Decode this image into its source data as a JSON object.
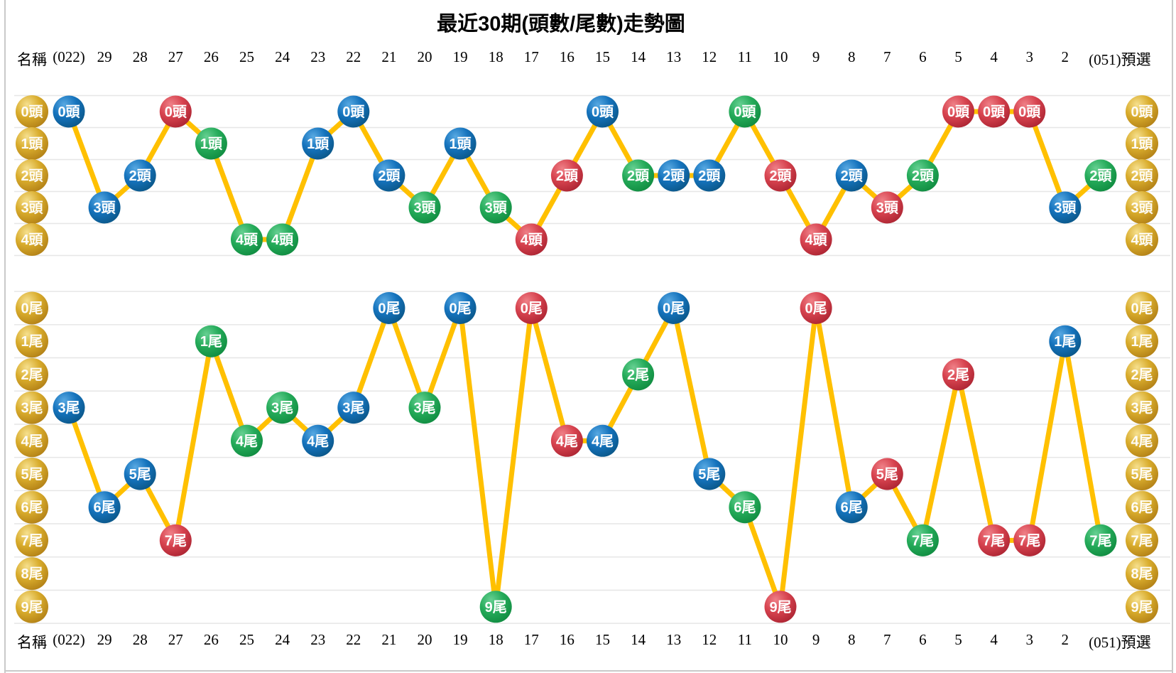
{
  "title": "最近30期(頭數/尾數)走勢圖",
  "header": {
    "name_label": "名稱",
    "periods": [
      "(022)",
      "29",
      "28",
      "27",
      "26",
      "25",
      "24",
      "23",
      "22",
      "21",
      "20",
      "19",
      "18",
      "17",
      "16",
      "15",
      "14",
      "13",
      "12",
      "11",
      "10",
      "9",
      "8",
      "7",
      "6",
      "5",
      "4",
      "3",
      "2",
      "(051)預選"
    ]
  },
  "colors": {
    "blue": "#1573bd",
    "red": "#d7434f",
    "green": "#25ab5a",
    "gold": "#d9ac2c",
    "line": "#ffc000",
    "grid": "#e6e6e6",
    "text": "#000000",
    "ball_text": "#ffffff"
  },
  "chart_data": [
    {
      "type": "line",
      "name": "頭數走勢",
      "unit": "頭",
      "row_labels": [
        "0頭",
        "1頭",
        "2頭",
        "3頭",
        "4頭"
      ],
      "categories": [
        "(022)",
        "29",
        "28",
        "27",
        "26",
        "25",
        "24",
        "23",
        "22",
        "21",
        "20",
        "19",
        "18",
        "17",
        "16",
        "15",
        "14",
        "13",
        "12",
        "11",
        "10",
        "9",
        "8",
        "7",
        "6",
        "5",
        "4",
        "3",
        "2",
        "(051)預選"
      ],
      "values": [
        0,
        3,
        2,
        0,
        1,
        4,
        4,
        1,
        0,
        2,
        3,
        1,
        3,
        4,
        2,
        0,
        2,
        2,
        2,
        0,
        2,
        4,
        2,
        3,
        2,
        0,
        0,
        0,
        3,
        2
      ],
      "point_colors": [
        "blue",
        "blue",
        "blue",
        "red",
        "green",
        "green",
        "green",
        "blue",
        "blue",
        "blue",
        "green",
        "blue",
        "green",
        "red",
        "red",
        "blue",
        "green",
        "blue",
        "blue",
        "green",
        "red",
        "red",
        "blue",
        "red",
        "green",
        "red",
        "red",
        "red",
        "blue",
        "green"
      ],
      "ylim": [
        0,
        4
      ],
      "grid": true,
      "legend": "none",
      "marker_label_format": "{value}頭"
    },
    {
      "type": "line",
      "name": "尾數走勢",
      "unit": "尾",
      "row_labels": [
        "0尾",
        "1尾",
        "2尾",
        "3尾",
        "4尾",
        "5尾",
        "6尾",
        "7尾",
        "8尾",
        "9尾"
      ],
      "categories": [
        "(022)",
        "29",
        "28",
        "27",
        "26",
        "25",
        "24",
        "23",
        "22",
        "21",
        "20",
        "19",
        "18",
        "17",
        "16",
        "15",
        "14",
        "13",
        "12",
        "11",
        "10",
        "9",
        "8",
        "7",
        "6",
        "5",
        "4",
        "3",
        "2",
        "(051)預選"
      ],
      "values": [
        3,
        6,
        5,
        7,
        1,
        4,
        3,
        4,
        3,
        0,
        3,
        0,
        9,
        0,
        4,
        4,
        2,
        0,
        5,
        6,
        9,
        0,
        6,
        5,
        7,
        2,
        7,
        7,
        1,
        7
      ],
      "point_colors": [
        "blue",
        "blue",
        "blue",
        "red",
        "green",
        "green",
        "green",
        "blue",
        "blue",
        "blue",
        "green",
        "blue",
        "green",
        "red",
        "red",
        "blue",
        "green",
        "blue",
        "blue",
        "green",
        "red",
        "red",
        "blue",
        "red",
        "green",
        "red",
        "red",
        "red",
        "blue",
        "green"
      ],
      "ylim": [
        0,
        9
      ],
      "grid": true,
      "legend": "none",
      "marker_label_format": "{value}尾"
    }
  ]
}
